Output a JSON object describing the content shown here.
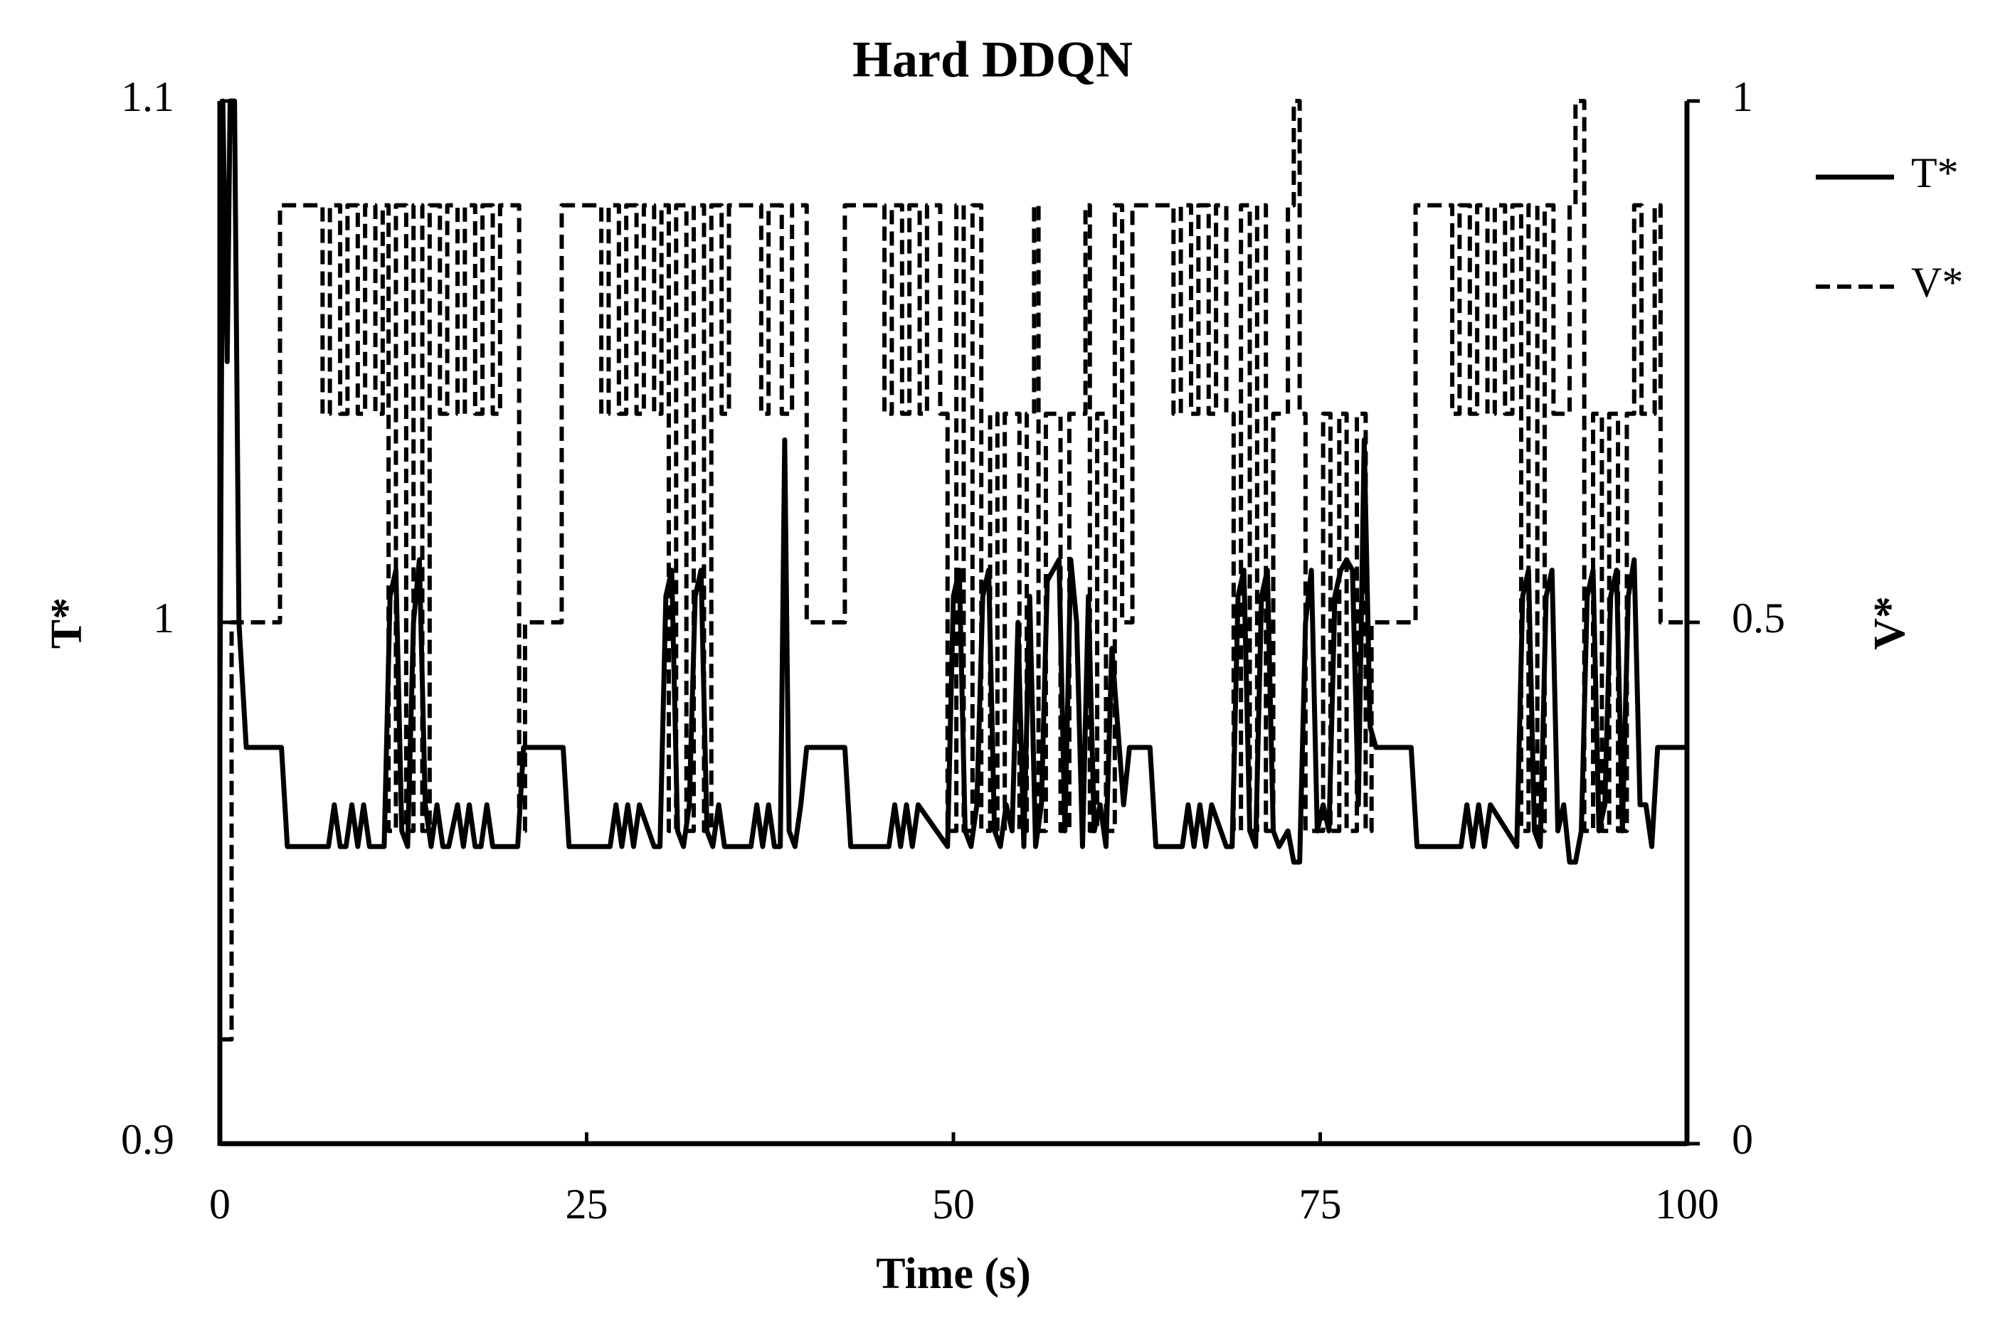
{
  "chart_data": {
    "type": "line",
    "title": "Hard DDQN",
    "x_label": "Time (s)",
    "y_label": "T*",
    "y2_label": "V*",
    "xlim": [
      0,
      100
    ],
    "xticks": [
      0,
      25,
      50,
      75,
      100
    ],
    "ylim": [
      0.9,
      1.1
    ],
    "yticks": [
      0.9,
      1,
      1.1
    ],
    "y2lim": [
      0,
      1
    ],
    "y2ticks": [
      0,
      0.5,
      1
    ],
    "legend": "right",
    "series": [
      {
        "name": "T*",
        "color": "#000000",
        "dash": "solid",
        "x": [
          0,
          0.2,
          0.5,
          0.7,
          1.0,
          1.3,
          1.8,
          4.2,
          4.6,
          7.4,
          7.8,
          8.2,
          8.6,
          9.0,
          9.4,
          9.8,
          10.2,
          11.2,
          11.6,
          12.0,
          12.4,
          12.8,
          13.2,
          13.6,
          14.0,
          14.4,
          14.8,
          15.2,
          15.6,
          16.2,
          16.6,
          17.0,
          17.4,
          17.8,
          18.2,
          18.6,
          19.0,
          20.3,
          20.7,
          23.4,
          23.8,
          26.6,
          27.0,
          27.4,
          27.8,
          28.2,
          28.6,
          29.6,
          30.0,
          30.4,
          30.8,
          31.2,
          31.6,
          32.0,
          32.4,
          32.8,
          33.2,
          33.6,
          34.0,
          34.4,
          36.2,
          36.6,
          37.0,
          37.4,
          37.8,
          38.2,
          38.5,
          38.8,
          39.2,
          39.6,
          40.0,
          40.3,
          42.6,
          43.0,
          45.6,
          46.0,
          46.4,
          46.8,
          47.2,
          47.6,
          49.6,
          50.0,
          50.4,
          50.8,
          51.2,
          51.6,
          52.0,
          52.4,
          52.8,
          53.2,
          53.6,
          54.0,
          54.4,
          54.8,
          55.2,
          55.6,
          56.0,
          56.4,
          56.8,
          57.2,
          57.6,
          58.0,
          58.4,
          58.8,
          59.2,
          59.6,
          60.0,
          60.4,
          60.8,
          61.6,
          62.0,
          63.4,
          63.8,
          65.6,
          66.0,
          66.4,
          66.8,
          67.2,
          67.6,
          68.6,
          69.0,
          69.4,
          69.8,
          70.2,
          70.6,
          71.0,
          71.4,
          71.8,
          72.2,
          72.8,
          73.2,
          73.6,
          74.0,
          74.4,
          74.8,
          75.2,
          75.6,
          76.0,
          76.4,
          76.8,
          77.2,
          77.6,
          78.0,
          78.4,
          78.8,
          79.2,
          81.2,
          81.6,
          84.6,
          85.0,
          85.4,
          85.8,
          86.2,
          86.6,
          88.4,
          88.8,
          89.2,
          89.6,
          90.0,
          90.4,
          90.8,
          91.2,
          91.6,
          92.0,
          92.4,
          92.8,
          93.2,
          93.6,
          94.0,
          94.4,
          94.8,
          95.2,
          95.6,
          96.0,
          96.4,
          96.8,
          97.2,
          97.6,
          98.0,
          98.4,
          100
        ],
        "values": [
          0.98,
          1.1,
          1.05,
          1.1,
          1.1,
          1.0,
          0.976,
          0.976,
          0.957,
          0.957,
          0.965,
          0.957,
          0.957,
          0.965,
          0.957,
          0.965,
          0.957,
          0.957,
          1.005,
          1.01,
          0.96,
          0.957,
          1.0,
          1.012,
          0.965,
          0.957,
          0.965,
          0.957,
          0.957,
          0.965,
          0.957,
          0.965,
          0.957,
          0.957,
          0.965,
          0.957,
          0.957,
          0.957,
          0.976,
          0.976,
          0.957,
          0.957,
          0.965,
          0.957,
          0.965,
          0.957,
          0.965,
          0.957,
          0.957,
          1.005,
          1.01,
          0.96,
          0.957,
          0.965,
          1.005,
          1.01,
          0.96,
          0.957,
          0.965,
          0.957,
          0.957,
          0.965,
          0.957,
          0.965,
          0.957,
          0.957,
          1.035,
          0.96,
          0.957,
          0.965,
          0.976,
          0.976,
          0.976,
          0.957,
          0.957,
          0.965,
          0.957,
          0.965,
          0.957,
          0.965,
          0.957,
          1.005,
          1.01,
          0.96,
          0.957,
          0.965,
          1.005,
          1.01,
          0.96,
          0.957,
          0.965,
          0.96,
          1.0,
          0.957,
          1.005,
          0.957,
          0.965,
          1.008,
          1.01,
          1.012,
          0.96,
          1.012,
          1.0,
          0.957,
          1.005,
          0.96,
          0.965,
          0.957,
          0.995,
          0.965,
          0.976,
          0.976,
          0.957,
          0.957,
          0.965,
          0.957,
          0.965,
          0.957,
          0.965,
          0.957,
          0.957,
          1.005,
          1.01,
          0.96,
          0.957,
          1.005,
          1.01,
          0.96,
          0.957,
          0.96,
          0.954,
          0.954,
          1.0,
          1.01,
          0.96,
          0.965,
          0.96,
          1.005,
          1.01,
          1.012,
          1.01,
          0.965,
          1.035,
          0.98,
          0.976,
          0.976,
          0.976,
          0.957,
          0.957,
          0.965,
          0.957,
          0.965,
          0.957,
          0.965,
          0.957,
          1.005,
          1.01,
          0.96,
          0.957,
          1.005,
          1.01,
          0.96,
          0.965,
          0.954,
          0.954,
          0.96,
          1.005,
          1.01,
          0.96,
          0.965,
          1.005,
          1.01,
          0.96,
          1.005,
          1.012,
          0.965,
          0.965,
          0.957,
          0.976,
          0.976,
          0.976
        ]
      },
      {
        "name": "V*",
        "color": "#000000",
        "dash": "dashed",
        "axis": "y2",
        "x": [
          0,
          0.8,
          0.8,
          4.1,
          4.1,
          7,
          7,
          7.5,
          7.5,
          8.2,
          8.2,
          8.7,
          8.7,
          9.4,
          9.4,
          9.9,
          9.9,
          10.6,
          10.6,
          11.1,
          11.1,
          11.5,
          11.5,
          12,
          12,
          12.7,
          12.7,
          13.2,
          13.2,
          13.8,
          13.8,
          14.3,
          14.3,
          15,
          15,
          15.5,
          15.5,
          16.2,
          16.2,
          16.7,
          16.7,
          17.4,
          17.4,
          17.9,
          17.9,
          18.6,
          18.6,
          19.1,
          19.1,
          20.4,
          20.4,
          20.8,
          20.8,
          23.3,
          23.3,
          26,
          26,
          26.5,
          26.5,
          27.2,
          27.2,
          27.7,
          27.7,
          28.4,
          28.4,
          28.9,
          28.9,
          29.6,
          29.6,
          30.1,
          30.1,
          30.6,
          30.6,
          31.1,
          31.1,
          31.8,
          31.8,
          32.3,
          32.3,
          33,
          33,
          33.5,
          33.5,
          34.2,
          34.2,
          34.7,
          34.7,
          36.9,
          36.9,
          37.4,
          37.4,
          38.3,
          38.3,
          39,
          39,
          40,
          40,
          42.6,
          42.6,
          45.3,
          45.3,
          45.8,
          45.8,
          46.5,
          46.5,
          47,
          47,
          47.7,
          47.7,
          48.2,
          48.2,
          49.1,
          49.1,
          49.6,
          49.6,
          50.2,
          50.2,
          50.7,
          50.7,
          51.3,
          51.3,
          51.9,
          51.9,
          52.5,
          52.5,
          53,
          53,
          53.5,
          53.5,
          54.5,
          54.5,
          55,
          55,
          55.5,
          55.5,
          55.8,
          55.8,
          56.3,
          56.3,
          57.3,
          57.3,
          57.9,
          57.9,
          59,
          59,
          59.3,
          59.3,
          59.8,
          59.8,
          60.4,
          60.4,
          61,
          61,
          61.5,
          61.5,
          62.2,
          62.2,
          65,
          65,
          65.5,
          65.5,
          66.2,
          66.2,
          66.7,
          66.7,
          67.4,
          67.4,
          67.9,
          67.9,
          68.6,
          68.6,
          69.1,
          69.1,
          69.6,
          69.6,
          70.2,
          70.2,
          70.7,
          70.7,
          71.3,
          71.3,
          71.8,
          71.8,
          72.8,
          72.8,
          73.2,
          73.2,
          73.6,
          73.6,
          74,
          74,
          75.2,
          75.2,
          75.7,
          75.7,
          76.3,
          76.3,
          76.8,
          76.8,
          77.5,
          77.5,
          78.1,
          78.1,
          78.5,
          78.5,
          81.5,
          81.5,
          84,
          84,
          84.5,
          84.5,
          85.2,
          85.2,
          85.7,
          85.7,
          86.4,
          86.4,
          86.9,
          86.9,
          87.6,
          87.6,
          88.1,
          88.1,
          88.7,
          88.7,
          89.2,
          89.2,
          89.8,
          89.8,
          90.3,
          90.3,
          90.9,
          90.9,
          92,
          92,
          92.4,
          92.4,
          93,
          93,
          93.6,
          93.6,
          94.2,
          94.2,
          94.7,
          94.7,
          95.3,
          95.3,
          95.9,
          95.9,
          96.4,
          96.4,
          96.9,
          96.9,
          97.8,
          97.8,
          98.2,
          98.2,
          100
        ],
        "values": [
          0.1,
          0.1,
          0.5,
          0.5,
          0.9,
          0.9,
          0.7,
          0.7,
          0.9,
          0.9,
          0.7,
          0.7,
          0.9,
          0.9,
          0.7,
          0.7,
          0.9,
          0.9,
          0.7,
          0.7,
          0.9,
          0.9,
          0.3,
          0.3,
          0.9,
          0.9,
          0.3,
          0.3,
          0.9,
          0.9,
          0.3,
          0.3,
          0.9,
          0.9,
          0.7,
          0.7,
          0.9,
          0.9,
          0.7,
          0.7,
          0.9,
          0.9,
          0.7,
          0.7,
          0.9,
          0.9,
          0.7,
          0.7,
          0.9,
          0.9,
          0.3,
          0.3,
          0.5,
          0.5,
          0.9,
          0.9,
          0.7,
          0.7,
          0.9,
          0.9,
          0.7,
          0.7,
          0.9,
          0.9,
          0.7,
          0.7,
          0.9,
          0.9,
          0.7,
          0.7,
          0.9,
          0.9,
          0.3,
          0.3,
          0.9,
          0.9,
          0.3,
          0.3,
          0.9,
          0.9,
          0.3,
          0.3,
          0.9,
          0.9,
          0.7,
          0.7,
          0.9,
          0.9,
          0.7,
          0.7,
          0.9,
          0.9,
          0.7,
          0.7,
          0.9,
          0.9,
          0.5,
          0.5,
          0.9,
          0.9,
          0.7,
          0.7,
          0.9,
          0.9,
          0.7,
          0.7,
          0.9,
          0.9,
          0.7,
          0.7,
          0.9,
          0.9,
          0.7,
          0.7,
          0.3,
          0.3,
          0.9,
          0.9,
          0.3,
          0.3,
          0.9,
          0.9,
          0.3,
          0.3,
          0.7,
          0.7,
          0.3,
          0.3,
          0.7,
          0.7,
          0.3,
          0.3,
          0.7,
          0.7,
          0.9,
          0.9,
          0.3,
          0.3,
          0.7,
          0.7,
          0.3,
          0.3,
          0.7,
          0.7,
          0.9,
          0.9,
          0.3,
          0.3,
          0.7,
          0.7,
          0.3,
          0.3,
          0.9,
          0.9,
          0.5,
          0.5,
          0.9,
          0.9,
          0.7,
          0.7,
          0.9,
          0.9,
          0.7,
          0.7,
          0.9,
          0.9,
          0.7,
          0.7,
          0.9,
          0.9,
          0.7,
          0.7,
          0.3,
          0.3,
          0.9,
          0.9,
          0.3,
          0.3,
          0.9,
          0.9,
          0.3,
          0.3,
          0.7,
          0.7,
          0.9,
          0.9,
          1,
          1,
          0.7,
          0.7,
          0.3,
          0.3,
          0.7,
          0.7,
          0.3,
          0.3,
          0.7,
          0.7,
          0.3,
          0.3,
          0.7,
          0.7,
          0.3,
          0.3,
          0.5,
          0.5,
          0.9,
          0.9,
          0.7,
          0.7,
          0.9,
          0.9,
          0.7,
          0.7,
          0.9,
          0.9,
          0.7,
          0.7,
          0.9,
          0.9,
          0.7,
          0.7,
          0.9,
          0.9,
          0.3,
          0.3,
          0.9,
          0.9,
          0.3,
          0.3,
          0.9,
          0.9,
          0.7,
          0.7,
          0.9,
          0.9,
          1,
          1,
          0.3,
          0.3,
          0.7,
          0.7,
          0.3,
          0.3,
          0.7,
          0.7,
          0.3,
          0.3,
          0.7,
          0.7,
          0.9,
          0.9,
          0.7,
          0.7,
          0.9,
          0.9,
          0.5,
          0.5
        ]
      }
    ]
  }
}
